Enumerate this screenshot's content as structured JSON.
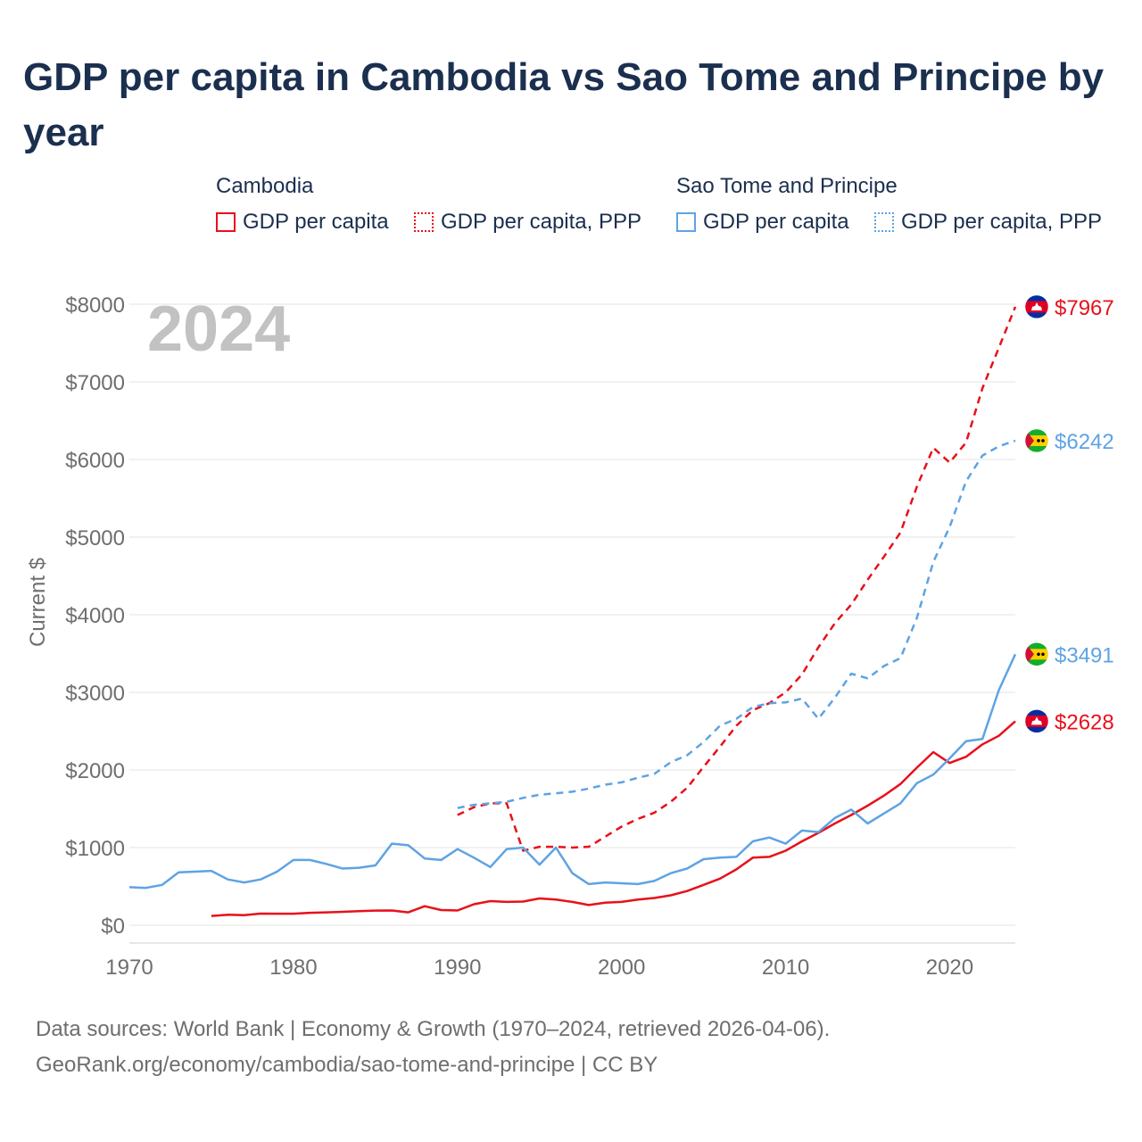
{
  "title": "GDP per capita in Cambodia vs Sao Tome and Principe by year",
  "legend": {
    "groups": [
      {
        "name": "Cambodia",
        "items": [
          {
            "label": "GDP per capita",
            "style": "solid",
            "color": "#e8101a"
          },
          {
            "label": "GDP per capita, PPP",
            "style": "dotted",
            "color": "#e8101a"
          }
        ]
      },
      {
        "name": "Sao Tome and Principe",
        "items": [
          {
            "label": "GDP per capita",
            "style": "solid",
            "color": "#5ea3e4"
          },
          {
            "label": "GDP per capita, PPP",
            "style": "dotted",
            "color": "#5ea3e4"
          }
        ]
      }
    ]
  },
  "year_label": "2024",
  "chart_data": {
    "type": "line",
    "title": "GDP per capita in Cambodia vs Sao Tome and Principe by year",
    "xlabel": "",
    "ylabel": "Current $",
    "xlim": [
      1970,
      2024
    ],
    "ylim": [
      0,
      8000
    ],
    "x_ticks": [
      1970,
      1980,
      1990,
      2000,
      2010,
      2020
    ],
    "y_ticks": [
      0,
      1000,
      2000,
      3000,
      4000,
      5000,
      6000,
      7000,
      8000
    ],
    "y_tick_labels": [
      "$0",
      "$1000",
      "$2000",
      "$3000",
      "$4000",
      "$5000",
      "$6000",
      "$7000",
      "$8000"
    ],
    "grid": true,
    "series": [
      {
        "name": "Cambodia GDP per capita",
        "country": "Cambodia",
        "color": "#e8101a",
        "dash": "solid",
        "end_label": "$2628",
        "flag": "cambodia",
        "x": [
          1975,
          1976,
          1977,
          1978,
          1979,
          1980,
          1981,
          1982,
          1983,
          1984,
          1985,
          1986,
          1987,
          1988,
          1989,
          1990,
          1991,
          1992,
          1993,
          1994,
          1995,
          1996,
          1997,
          1998,
          1999,
          2000,
          2001,
          2002,
          2003,
          2004,
          2005,
          2006,
          2007,
          2008,
          2009,
          2010,
          2011,
          2012,
          2013,
          2014,
          2015,
          2016,
          2017,
          2018,
          2019,
          2020,
          2021,
          2022,
          2023,
          2024
        ],
        "y": [
          120,
          135,
          130,
          150,
          148,
          148,
          160,
          165,
          172,
          180,
          188,
          190,
          165,
          245,
          195,
          190,
          270,
          310,
          300,
          305,
          345,
          330,
          300,
          260,
          290,
          300,
          330,
          350,
          385,
          440,
          520,
          600,
          720,
          870,
          880,
          960,
          1080,
          1190,
          1310,
          1420,
          1540,
          1670,
          1820,
          2030,
          2230,
          2090,
          2170,
          2330,
          2440,
          2628
        ]
      },
      {
        "name": "Cambodia GDP per capita, PPP",
        "country": "Cambodia",
        "color": "#e8101a",
        "dash": "dashed",
        "end_label": "$7967",
        "flag": "cambodia",
        "x": [
          1990,
          1991,
          1992,
          1993,
          1994,
          1995,
          1996,
          1997,
          1998,
          1999,
          2000,
          2001,
          2002,
          2003,
          2004,
          2005,
          2006,
          2007,
          2008,
          2009,
          2010,
          2011,
          2012,
          2013,
          2014,
          2015,
          2016,
          2017,
          2018,
          2019,
          2020,
          2021,
          2022,
          2023,
          2024
        ],
        "y": [
          1420,
          1520,
          1570,
          1570,
          960,
          1010,
          1010,
          1000,
          1010,
          1140,
          1270,
          1370,
          1450,
          1590,
          1770,
          2040,
          2300,
          2570,
          2770,
          2860,
          3000,
          3230,
          3580,
          3890,
          4130,
          4450,
          4750,
          5060,
          5650,
          6150,
          5960,
          6220,
          6920,
          7440,
          7967
        ]
      },
      {
        "name": "Sao Tome and Principe GDP per capita",
        "country": "Sao Tome and Principe",
        "color": "#5ea3e4",
        "dash": "solid",
        "end_label": "$3491",
        "flag": "sao-tome",
        "x": [
          1970,
          1971,
          1972,
          1973,
          1974,
          1975,
          1976,
          1977,
          1978,
          1979,
          1980,
          1981,
          1982,
          1983,
          1984,
          1985,
          1986,
          1987,
          1988,
          1989,
          1990,
          1991,
          1992,
          1993,
          1994,
          1995,
          1996,
          1997,
          1998,
          1999,
          2000,
          2001,
          2002,
          2003,
          2004,
          2005,
          2006,
          2007,
          2008,
          2009,
          2010,
          2011,
          2012,
          2013,
          2014,
          2015,
          2016,
          2017,
          2018,
          2019,
          2020,
          2021,
          2022,
          2023,
          2024
        ],
        "y": [
          490,
          480,
          520,
          680,
          690,
          700,
          590,
          550,
          590,
          690,
          840,
          840,
          790,
          730,
          740,
          770,
          1050,
          1030,
          860,
          840,
          980,
          870,
          750,
          980,
          1000,
          780,
          1000,
          670,
          530,
          550,
          540,
          530,
          570,
          670,
          730,
          850,
          870,
          880,
          1080,
          1130,
          1050,
          1220,
          1200,
          1380,
          1490,
          1310,
          1440,
          1570,
          1830,
          1940,
          2150,
          2370,
          2400,
          3030,
          3491
        ]
      },
      {
        "name": "Sao Tome and Principe GDP per capita, PPP",
        "country": "Sao Tome and Principe",
        "color": "#5ea3e4",
        "dash": "dashed",
        "end_label": "$6242",
        "flag": "sao-tome",
        "x": [
          1990,
          1991,
          1992,
          1993,
          1994,
          1995,
          1996,
          1997,
          1998,
          1999,
          2000,
          2001,
          2002,
          2003,
          2004,
          2005,
          2006,
          2007,
          2008,
          2009,
          2010,
          2011,
          2012,
          2013,
          2014,
          2015,
          2016,
          2017,
          2018,
          2019,
          2020,
          2021,
          2022,
          2023,
          2024
        ],
        "y": [
          1510,
          1550,
          1570,
          1590,
          1640,
          1680,
          1700,
          1720,
          1760,
          1810,
          1840,
          1900,
          1950,
          2100,
          2190,
          2360,
          2570,
          2660,
          2810,
          2860,
          2870,
          2920,
          2660,
          2930,
          3240,
          3180,
          3340,
          3440,
          3960,
          4680,
          5130,
          5720,
          6050,
          6170,
          6242
        ]
      }
    ]
  },
  "footer": {
    "line1": "Data sources: World Bank | Economy & Growth (1970–2024, retrieved 2026-04-06).",
    "line2": "GeoRank.org/economy/cambodia/sao-tome-and-principe | CC BY"
  }
}
